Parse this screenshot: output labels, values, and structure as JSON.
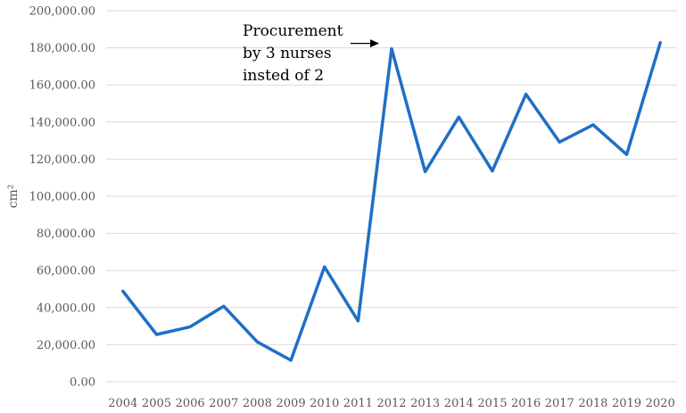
{
  "chart_data": {
    "type": "line",
    "title": "",
    "xlabel": "",
    "ylabel": "cm²",
    "ylim": [
      0,
      200000
    ],
    "ytick_step": 20000,
    "ytick_labels": [
      "0.00",
      "20,000.00",
      "40,000.00",
      "60,000.00",
      "80,000.00",
      "100,000.00",
      "120,000.00",
      "140,000.00",
      "160,000.00",
      "180,000.00",
      "200,000.00"
    ],
    "categories": [
      "2004",
      "2005",
      "2006",
      "2007",
      "2008",
      "2009",
      "2010",
      "2011",
      "2012",
      "2013",
      "2014",
      "2015",
      "2016",
      "2017",
      "2018",
      "2019",
      "2020"
    ],
    "series": [
      {
        "color": "#1f6fc5",
        "values": [
          48800,
          25500,
          29600,
          40700,
          21500,
          11600,
          61900,
          32800,
          179500,
          113200,
          142700,
          113600,
          155000,
          129200,
          138500,
          122500,
          182800
        ]
      }
    ],
    "annotation": {
      "lines": [
        "Procurement",
        "by 3 nurses",
        "insted of 2"
      ],
      "target_category": "2012"
    },
    "grid": true,
    "legend": "none"
  }
}
